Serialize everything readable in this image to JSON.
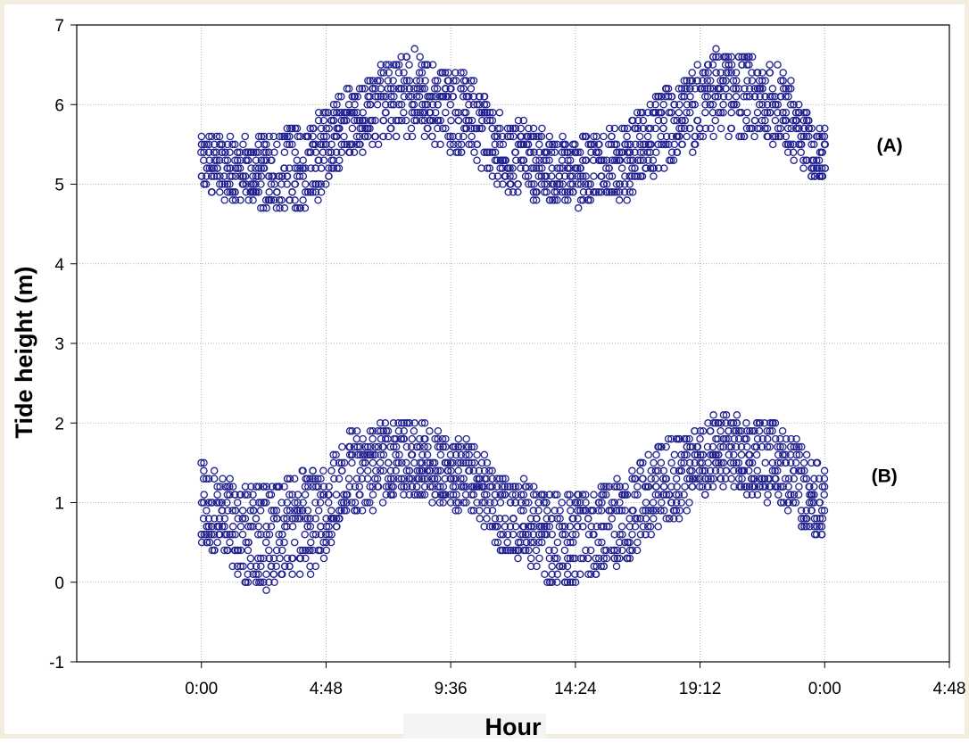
{
  "chart_data": {
    "type": "scatter",
    "title": "",
    "xlabel": "Hour",
    "ylabel": "Tide height (m)",
    "x_tick_labels": [
      "0:00",
      "4:48",
      "9:36",
      "14:24",
      "19:12",
      "0:00",
      "4:48"
    ],
    "y_tick_labels": [
      "-1",
      "0",
      "1",
      "2",
      "3",
      "4",
      "5",
      "6",
      "7"
    ],
    "xlim_hours": [
      -4.8,
      28.8
    ],
    "ylim": [
      -1,
      7
    ],
    "grid": true,
    "marker": "open circle",
    "colors": {
      "marker": "#1f1f8f",
      "grid": "#9a9a9a",
      "background": "#ffffff",
      "border": "#f3ede0"
    },
    "annotations": [
      {
        "id": "A",
        "text": "(A)",
        "x_hours": 26.5,
        "y": 5.5
      },
      {
        "id": "B",
        "text": "(B)",
        "x_hours": 26.3,
        "y": 1.35
      }
    ],
    "series": [
      {
        "label": "(A)",
        "x_range_hours": [
          0,
          24
        ],
        "sampled_envelope": [
          {
            "hour": 0.0,
            "low": 4.9,
            "high": 5.6
          },
          {
            "hour": 2.0,
            "low": 4.7,
            "high": 5.6
          },
          {
            "hour": 4.0,
            "low": 4.7,
            "high": 5.8
          },
          {
            "hour": 6.0,
            "low": 5.4,
            "high": 6.3
          },
          {
            "hour": 8.0,
            "low": 5.6,
            "high": 6.7
          },
          {
            "hour": 10.0,
            "low": 5.4,
            "high": 6.4
          },
          {
            "hour": 12.0,
            "low": 4.9,
            "high": 5.8
          },
          {
            "hour": 14.0,
            "low": 4.7,
            "high": 5.6
          },
          {
            "hour": 16.0,
            "low": 4.8,
            "high": 5.7
          },
          {
            "hour": 18.0,
            "low": 5.2,
            "high": 6.2
          },
          {
            "hour": 20.0,
            "low": 5.6,
            "high": 6.7
          },
          {
            "hour": 22.0,
            "low": 5.5,
            "high": 6.5
          },
          {
            "hour": 24.0,
            "low": 5.0,
            "high": 5.7
          }
        ]
      },
      {
        "label": "(B)",
        "x_range_hours": [
          0,
          24
        ],
        "sampled_envelope": [
          {
            "hour": 0.0,
            "low": 0.4,
            "high": 1.5
          },
          {
            "hour": 2.0,
            "low": -0.1,
            "high": 1.2
          },
          {
            "hour": 4.0,
            "low": 0.1,
            "high": 1.4
          },
          {
            "hour": 6.0,
            "low": 0.9,
            "high": 1.9
          },
          {
            "hour": 8.0,
            "low": 1.1,
            "high": 2.1
          },
          {
            "hour": 10.0,
            "low": 0.9,
            "high": 1.8
          },
          {
            "hour": 12.0,
            "low": 0.3,
            "high": 1.3
          },
          {
            "hour": 14.0,
            "low": -0.1,
            "high": 1.1
          },
          {
            "hour": 16.0,
            "low": 0.2,
            "high": 1.3
          },
          {
            "hour": 18.0,
            "low": 0.8,
            "high": 1.8
          },
          {
            "hour": 20.0,
            "low": 1.2,
            "high": 2.1
          },
          {
            "hour": 22.0,
            "low": 1.0,
            "high": 2.0
          },
          {
            "hour": 24.0,
            "low": 0.5,
            "high": 1.5
          }
        ]
      }
    ]
  }
}
